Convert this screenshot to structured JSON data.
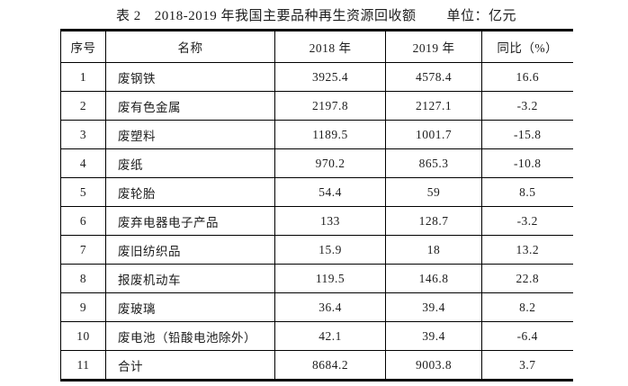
{
  "page": {
    "background": "#ffffff",
    "text_color": "#1d1d1d",
    "line_color": "#000000"
  },
  "title": {
    "table_label": "表 2",
    "caption": "2018-2019 年我国主要品种再生资源回收额",
    "unit_label": "单位：亿元"
  },
  "table": {
    "headers": [
      "序号",
      "名称",
      "2018 年",
      "2019 年",
      "同比（%）"
    ],
    "rows": [
      [
        "1",
        "废钢铁",
        "3925.4",
        "4578.4",
        "16.6"
      ],
      [
        "2",
        "废有色金属",
        "2197.8",
        "2127.1",
        "-3.2"
      ],
      [
        "3",
        "废塑料",
        "1189.5",
        "1001.7",
        "-15.8"
      ],
      [
        "4",
        "废纸",
        "970.2",
        "865.3",
        "-10.8"
      ],
      [
        "5",
        "废轮胎",
        "54.4",
        "59",
        "8.5"
      ],
      [
        "6",
        "废弃电器电子产品",
        "133",
        "128.7",
        "-3.2"
      ],
      [
        "7",
        "废旧纺织品",
        "15.9",
        "18",
        "13.2"
      ],
      [
        "8",
        "报废机动车",
        "119.5",
        "146.8",
        "22.8"
      ],
      [
        "9",
        "废玻璃",
        "36.4",
        "39.4",
        "8.2"
      ],
      [
        "10",
        "废电池（铅酸电池除外）",
        "42.1",
        "39.4",
        "-6.4"
      ],
      [
        "11",
        "合计",
        "8684.2",
        "9003.8",
        "3.7"
      ]
    ]
  }
}
